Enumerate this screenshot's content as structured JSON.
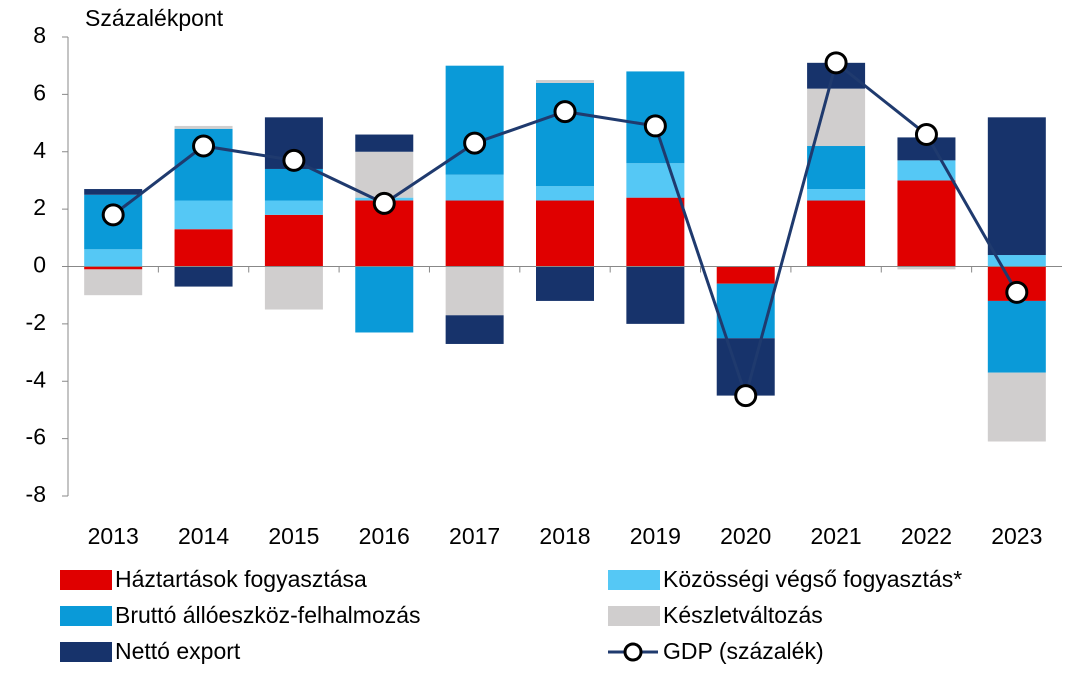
{
  "chart_data": {
    "type": "stacked_bar",
    "ylabel": "Százalékpont",
    "categories": [
      "2013",
      "2014",
      "2015",
      "2016",
      "2017",
      "2018",
      "2019",
      "2020",
      "2021",
      "2022",
      "2023"
    ],
    "series": [
      {
        "name": "Háztartások fogyasztása",
        "color": "#e00000",
        "values": [
          -0.1,
          1.3,
          1.8,
          2.3,
          2.3,
          2.3,
          2.4,
          -0.6,
          2.3,
          3.0,
          -1.2
        ]
      },
      {
        "name": "Közösségi végső fogyasztás*",
        "color": "#55c8f5",
        "values": [
          0.6,
          1.0,
          0.5,
          0.1,
          0.9,
          0.5,
          1.2,
          0,
          0.4,
          0.7,
          0.4
        ]
      },
      {
        "name": "Bruttó állóeszköz-felhalmozás",
        "color": "#0a9ad8",
        "values": [
          1.9,
          2.5,
          1.1,
          -2.3,
          3.8,
          3.6,
          3.2,
          -1.9,
          1.5,
          0,
          -2.5
        ]
      },
      {
        "name": "Készletváltozás",
        "color": "#d0cece",
        "values": [
          -0.9,
          0.1,
          -1.5,
          1.6,
          -1.7,
          0.1,
          0,
          0,
          2.0,
          -0.1,
          -2.4
        ]
      },
      {
        "name": "Nettó export",
        "color": "#17336b",
        "values": [
          0.2,
          -0.7,
          1.8,
          0.6,
          -1.0,
          -1.2,
          -2.0,
          -2.0,
          0.9,
          0.8,
          4.8
        ]
      }
    ],
    "line_series": {
      "name": "GDP (százalék)",
      "color": "#1f3a6e",
      "values": [
        1.8,
        4.2,
        3.7,
        2.2,
        4.3,
        5.4,
        4.9,
        -4.5,
        7.1,
        4.6,
        -0.9
      ]
    },
    "ylim": [
      -8,
      8
    ],
    "yticks": [
      -8,
      -6,
      -4,
      -2,
      0,
      2,
      4,
      6,
      8
    ]
  }
}
